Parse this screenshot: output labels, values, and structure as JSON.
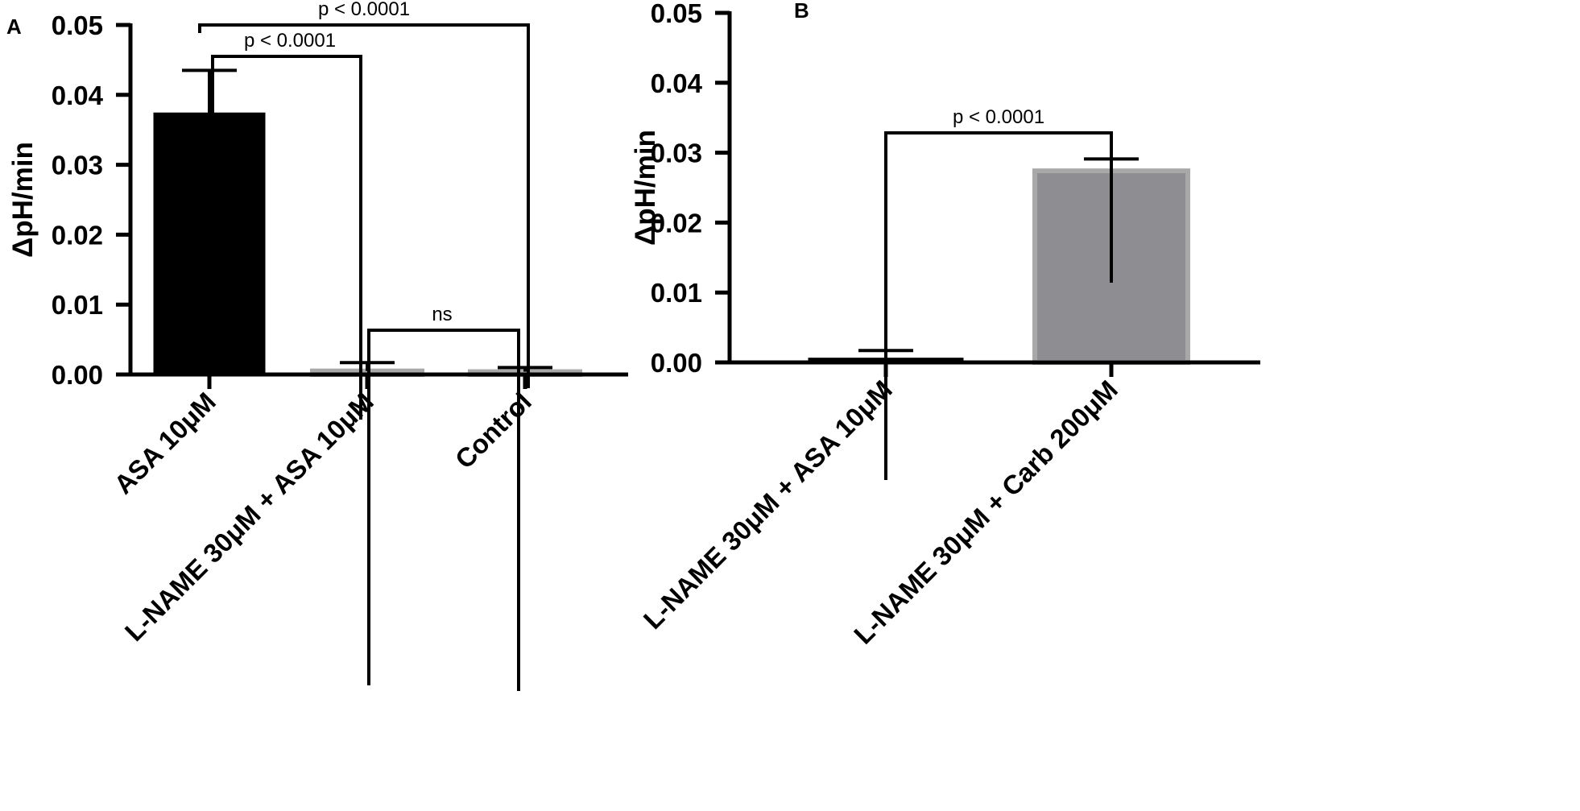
{
  "chart_data": [
    {
      "panel": "A",
      "type": "bar",
      "ylabel": "ΔpH/min",
      "ylim": [
        0,
        0.05
      ],
      "yticks": [
        "0.00",
        "0.01",
        "0.02",
        "0.03",
        "0.04",
        "0.05"
      ],
      "categories": [
        "ASA 10μM",
        "L-NAME 30μM + ASA  10μM",
        "Control"
      ],
      "values": [
        0.0373,
        0.0005,
        0.0004
      ],
      "errors": [
        0.0062,
        0.0012,
        0.0006
      ],
      "colors": [
        "#000000",
        "#9a9a9a",
        "#9a9a9a"
      ],
      "comparisons": [
        {
          "from": 0,
          "to": 1,
          "label": "p < 0.0001"
        },
        {
          "from": 0,
          "to": 2,
          "label": "p < 0.0001"
        },
        {
          "from": 1,
          "to": 2,
          "label": "ns"
        }
      ]
    },
    {
      "panel": "B",
      "type": "bar",
      "ylabel": "ΔpH/min",
      "ylim": [
        0,
        0.05
      ],
      "yticks": [
        "0.00",
        "0.01",
        "0.02",
        "0.03",
        "0.04",
        "0.05"
      ],
      "categories": [
        "L-NAME 30μM + ASA 10μM",
        "L-NAME 30μM + Carb 200μM"
      ],
      "values": [
        0.0005,
        0.0274
      ],
      "errors": [
        0.0012,
        0.0017
      ],
      "colors": [
        "#000000",
        "#8e8e92"
      ],
      "comparisons": [
        {
          "from": 0,
          "to": 1,
          "label": "p < 0.0001"
        }
      ]
    }
  ]
}
